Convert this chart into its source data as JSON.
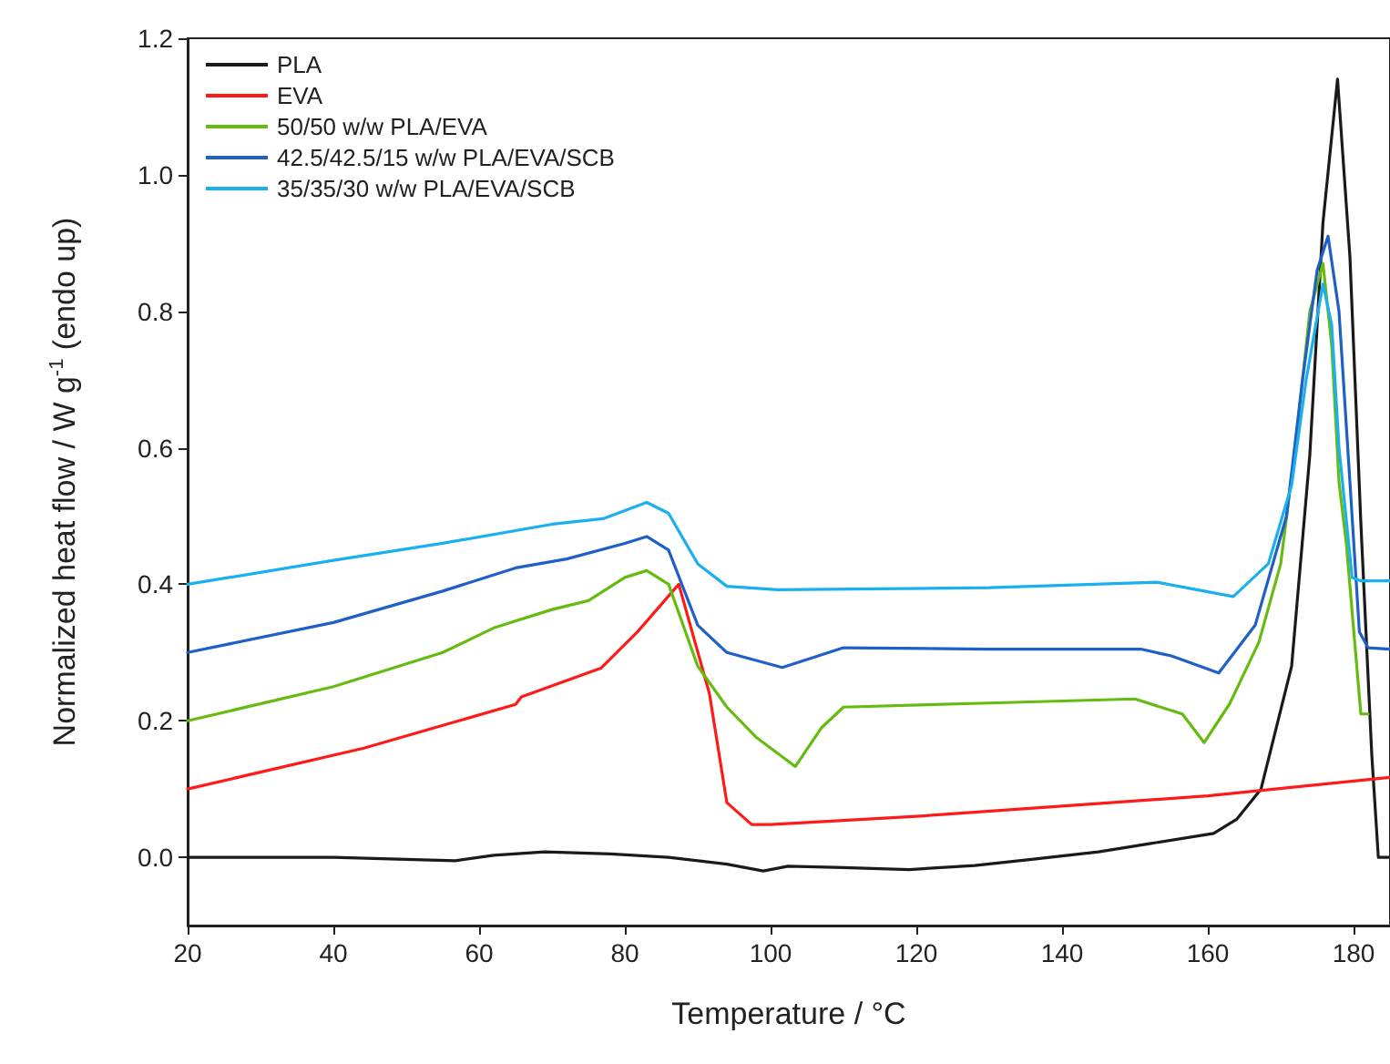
{
  "chart_data": {
    "type": "line",
    "xlabel": "Temperature / °C",
    "ylabel": "Normalized heat flow / W g$^{-1}$ (endo up)",
    "xlim": [
      20,
      185
    ],
    "xticks": [
      20,
      40,
      60,
      80,
      100,
      120,
      140,
      160,
      180
    ],
    "ylim": [
      -0.1,
      1.2
    ],
    "yticks": [
      {
        "value": 0,
        "label": "0.0"
      },
      0.2,
      0.4,
      0.6,
      0.8,
      {
        "value": 1,
        "label": "1.0"
      },
      1.2
    ],
    "grid": false,
    "legend": "top left",
    "marker": "none",
    "line_style": "solid",
    "series": [
      {
        "name": "PLA",
        "color": "#1a1a1a",
        "x": [
          20,
          40,
          56.7,
          62,
          69,
          78,
          86,
          94,
          99,
          102.4,
          110,
          119,
          128,
          135.8,
          145,
          152,
          160.8,
          164,
          167.3,
          171.5,
          174,
          175.8,
          177.8,
          179.5,
          181,
          182.5,
          183.4,
          185
        ],
        "values": [
          0,
          0,
          -0.005,
          0.003,
          0.008,
          0.005,
          0,
          -0.01,
          -0.02,
          -0.013,
          -0.015,
          -0.018,
          -0.012,
          -0.003,
          0.008,
          0.02,
          0.035,
          0.056,
          0.1,
          0.28,
          0.59,
          0.93,
          1.14,
          0.88,
          0.49,
          0.15,
          0,
          0
        ]
      },
      {
        "name": "EVA",
        "color": "#ff1a1a",
        "x": [
          20,
          44.2,
          65,
          65.8,
          76.7,
          81.7,
          87.4,
          91.6,
          94,
          97.4,
          100,
          120,
          140,
          160,
          185
        ],
        "values": [
          0.1,
          0.16,
          0.224,
          0.235,
          0.277,
          0.33,
          0.4,
          0.24,
          0.08,
          0.048,
          0.048,
          0.06,
          0.075,
          0.09,
          0.117
        ]
      },
      {
        "name": "50/50 w/w PLA/EVA",
        "color": "#66bb11",
        "x": [
          20,
          40,
          55,
          62,
          70,
          75,
          80,
          83,
          86,
          90,
          94,
          98,
          103.4,
          107,
          110,
          130,
          150,
          156.5,
          159.5,
          163,
          167,
          170,
          172,
          174,
          175.8,
          177,
          178,
          179,
          181,
          182
        ],
        "values": [
          0.2,
          0.25,
          0.3,
          0.336,
          0.363,
          0.376,
          0.41,
          0.42,
          0.4,
          0.28,
          0.22,
          0.176,
          0.133,
          0.19,
          0.22,
          0.226,
          0.232,
          0.21,
          0.168,
          0.225,
          0.315,
          0.43,
          0.6,
          0.8,
          0.87,
          0.75,
          0.55,
          0.46,
          0.21,
          0.21
        ]
      },
      {
        "name": "42.5/42.5/15 w/w PLA/EVA/SCB",
        "color": "#1f5fc8",
        "x": [
          20,
          40,
          55,
          65,
          72,
          80,
          83,
          86,
          90,
          94,
          101.6,
          110,
          130,
          150.8,
          155,
          161.5,
          166.5,
          170.8,
          173,
          175,
          176.5,
          178,
          179.5,
          180.8,
          182,
          185
        ],
        "values": [
          0.3,
          0.344,
          0.39,
          0.424,
          0.437,
          0.46,
          0.47,
          0.45,
          0.34,
          0.3,
          0.278,
          0.307,
          0.305,
          0.305,
          0.295,
          0.27,
          0.34,
          0.5,
          0.7,
          0.86,
          0.91,
          0.8,
          0.55,
          0.33,
          0.307,
          0.305
        ]
      },
      {
        "name": "35/35/30 w/w PLA/EVA/SCB",
        "color": "#1ab0f0",
        "x": [
          20,
          40,
          55,
          70,
          77,
          83,
          86,
          90,
          94,
          101,
          130,
          153,
          163.5,
          168.3,
          171.5,
          173.5,
          175.8,
          177,
          178,
          179.8,
          181,
          185
        ],
        "values": [
          0.4,
          0.435,
          0.46,
          0.488,
          0.496,
          0.52,
          0.504,
          0.43,
          0.397,
          0.392,
          0.395,
          0.403,
          0.382,
          0.43,
          0.545,
          0.7,
          0.84,
          0.78,
          0.6,
          0.41,
          0.405,
          0.405
        ]
      }
    ]
  }
}
